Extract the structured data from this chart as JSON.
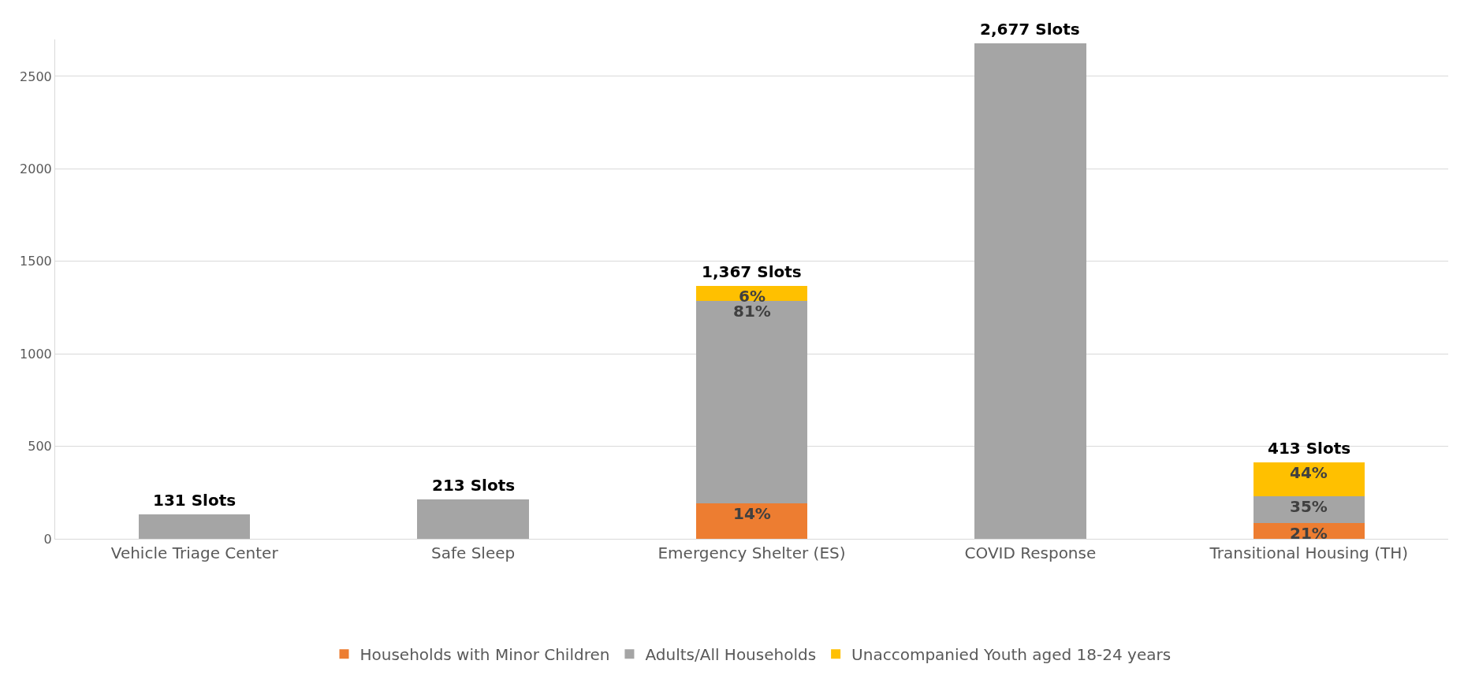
{
  "chart_data": {
    "type": "bar",
    "stacked": true,
    "categories": [
      "Vehicle Triage Center",
      "Safe Sleep",
      "Emergency Shelter (ES)",
      "COVID Response",
      "Transitional Housing (TH)"
    ],
    "series": [
      {
        "name": "Households with Minor Children",
        "color": "#ed7d31",
        "values": [
          null,
          null,
          191,
          null,
          87
        ]
      },
      {
        "name": "Adults/All Households",
        "color": "#a5a5a5",
        "values": [
          131,
          213,
          1094,
          2677,
          144
        ]
      },
      {
        "name": "Unaccompanied Youth aged 18-24 years",
        "color": "#ffc000",
        "values": [
          null,
          null,
          82,
          null,
          182
        ]
      }
    ],
    "annotations": [
      {
        "text": "14%",
        "x": "Emergency Shelter (ES)",
        "y": 191
      },
      {
        "text": "81%",
        "x": "Emergency Shelter (ES)",
        "y": 1285
      },
      {
        "text": "6%",
        "x": "Emergency Shelter (ES)",
        "y": 1367
      },
      {
        "text": "21%",
        "x": "Transitional Housing (TH)",
        "y": 87
      },
      {
        "text": "35%",
        "x": "Transitional Housing (TH)",
        "y": 231
      },
      {
        "text": "44%",
        "x": "Transitional Housing (TH)",
        "y": 413
      }
    ],
    "totals": [
      "131 Slots",
      "213 Slots",
      "1,367 Slots",
      "2,677 Slots",
      "413 Slots"
    ],
    "ylim": [
      0,
      2700
    ],
    "yticks": [
      0,
      500,
      1000,
      1500,
      2000,
      2500
    ],
    "grid": "y",
    "legend": "bottom"
  }
}
